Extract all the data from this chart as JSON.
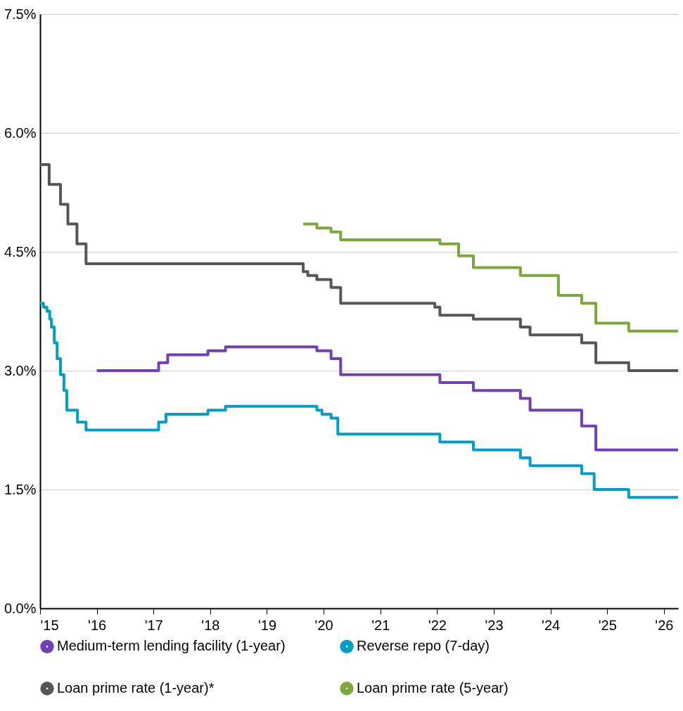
{
  "chart_data": {
    "type": "step",
    "series": [
      {
        "name": "Medium-term lending facility (1-year)",
        "color": "#7040b8",
        "x": [
          2016.0,
          2017.09,
          2017.25,
          2017.96,
          2018.27,
          2019.88,
          2020.13,
          2020.3,
          2022.05,
          2022.64,
          2023.47,
          2023.64,
          2024.55,
          2024.8,
          2026.25
        ],
        "values": [
          3.0,
          3.1,
          3.2,
          3.25,
          3.3,
          3.25,
          3.15,
          2.95,
          2.85,
          2.75,
          2.65,
          2.5,
          2.3,
          2.0,
          2.0
        ]
      },
      {
        "name": "Reverse repo (7-day)",
        "color": "#00a0c6",
        "x": [
          2015.0,
          2015.06,
          2015.12,
          2015.17,
          2015.2,
          2015.25,
          2015.3,
          2015.36,
          2015.42,
          2015.47,
          2015.66,
          2015.81,
          2017.09,
          2017.22,
          2017.96,
          2018.27,
          2019.88,
          2019.97,
          2020.13,
          2020.25,
          2022.05,
          2022.64,
          2023.47,
          2023.64,
          2024.55,
          2024.77,
          2025.38,
          2026.25
        ],
        "values": [
          3.85,
          3.8,
          3.75,
          3.65,
          3.55,
          3.35,
          3.15,
          2.95,
          2.75,
          2.5,
          2.35,
          2.25,
          2.35,
          2.45,
          2.5,
          2.55,
          2.5,
          2.45,
          2.4,
          2.2,
          2.1,
          2.0,
          1.9,
          1.8,
          1.7,
          1.5,
          1.4,
          1.4
        ]
      },
      {
        "name": "Loan prime rate (1-year)*",
        "color": "#54565a",
        "x": [
          2015.0,
          2015.16,
          2015.36,
          2015.49,
          2015.65,
          2015.81,
          2019.64,
          2019.72,
          2019.88,
          2020.13,
          2020.3,
          2021.96,
          2022.05,
          2022.64,
          2023.47,
          2023.64,
          2024.55,
          2024.8,
          2025.38,
          2026.25
        ],
        "values": [
          5.6,
          5.35,
          5.1,
          4.85,
          4.6,
          4.35,
          4.25,
          4.2,
          4.15,
          4.05,
          3.85,
          3.8,
          3.7,
          3.65,
          3.55,
          3.45,
          3.35,
          3.1,
          3.0,
          3.0
        ]
      },
      {
        "name": "Loan prime rate (5-year)",
        "color": "#7ba83a",
        "x": [
          2019.64,
          2019.88,
          2020.13,
          2020.3,
          2022.05,
          2022.38,
          2022.64,
          2023.47,
          2024.14,
          2024.55,
          2024.8,
          2025.38,
          2026.25
        ],
        "values": [
          4.85,
          4.8,
          4.75,
          4.65,
          4.6,
          4.45,
          4.3,
          4.2,
          3.95,
          3.85,
          3.6,
          3.5,
          3.5
        ]
      }
    ],
    "xlim": [
      2015,
      2026.25
    ],
    "xticks": [
      {
        "value": 2015,
        "label": "'15"
      },
      {
        "value": 2016,
        "label": "'16"
      },
      {
        "value": 2017,
        "label": "'17"
      },
      {
        "value": 2018,
        "label": "'18"
      },
      {
        "value": 2019,
        "label": "'19"
      },
      {
        "value": 2020,
        "label": "'20"
      },
      {
        "value": 2021,
        "label": "'21"
      },
      {
        "value": 2022,
        "label": "'22"
      },
      {
        "value": 2023,
        "label": "'23"
      },
      {
        "value": 2024,
        "label": "'24"
      },
      {
        "value": 2025,
        "label": "'25"
      },
      {
        "value": 2026,
        "label": "'26"
      }
    ],
    "ylim": [
      0,
      7.5
    ],
    "yticks": [
      {
        "value": 0,
        "label": "0.0%"
      },
      {
        "value": 1.5,
        "label": "1.5%"
      },
      {
        "value": 3,
        "label": "3.0%"
      },
      {
        "value": 4.5,
        "label": "4.5%"
      },
      {
        "value": 6,
        "label": "6.0%"
      },
      {
        "value": 7.5,
        "label": "7.5%"
      }
    ],
    "grid": "y",
    "legend": "bottom",
    "marker": "none",
    "line_style": "solid"
  }
}
